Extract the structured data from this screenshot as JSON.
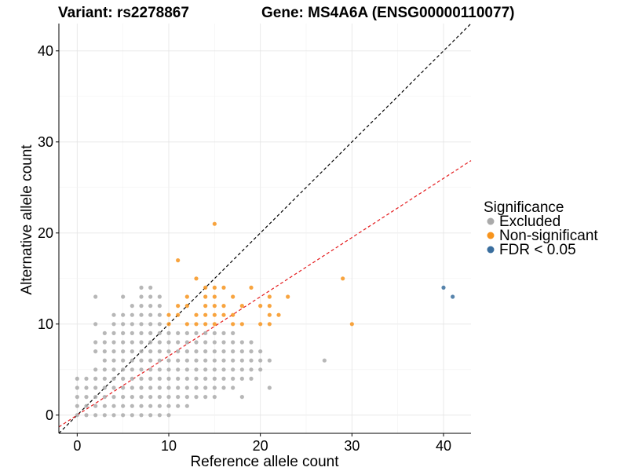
{
  "header": {
    "variant_title": "Variant: rs2278867",
    "gene_title": "Gene: MS4A6A (ENSG00000110077)"
  },
  "chart_data": {
    "type": "scatter",
    "title": "",
    "xlabel": "Reference allele count",
    "ylabel": "Alternative allele count",
    "xlim": [
      -2,
      43
    ],
    "ylim": [
      -2,
      43
    ],
    "x_ticks": [
      0,
      10,
      20,
      30,
      40
    ],
    "y_ticks": [
      0,
      10,
      20,
      30,
      40
    ],
    "x_tick_labels": [
      "0",
      "10",
      "20",
      "30",
      "40"
    ],
    "y_tick_labels": [
      "0",
      "10",
      "20",
      "30",
      "40"
    ],
    "grid": true,
    "legend": {
      "title": "Significance",
      "position": "right",
      "entries": [
        {
          "label": "Excluded",
          "color": "#AAAAAA"
        },
        {
          "label": "Non-significant",
          "color": "#F7941D"
        },
        {
          "label": "FDR < 0.05",
          "color": "#3A6E9E"
        }
      ]
    },
    "reference_lines": [
      {
        "slope": 1,
        "intercept": 0,
        "color": "#000000",
        "style": "dashed"
      },
      {
        "slope": 0.65,
        "intercept": 0,
        "color": "#E41A1C",
        "style": "dashed"
      }
    ],
    "series": [
      {
        "name": "Excluded",
        "color": "#AAAAAA",
        "points": [
          [
            0,
            0
          ],
          [
            0,
            1
          ],
          [
            0,
            2
          ],
          [
            0,
            3
          ],
          [
            0,
            4
          ],
          [
            1,
            0
          ],
          [
            1,
            1
          ],
          [
            1,
            2
          ],
          [
            1,
            3
          ],
          [
            1,
            4
          ],
          [
            2,
            0
          ],
          [
            2,
            1
          ],
          [
            2,
            2
          ],
          [
            2,
            3
          ],
          [
            2,
            4
          ],
          [
            2,
            5
          ],
          [
            2,
            7
          ],
          [
            2,
            8
          ],
          [
            2,
            10
          ],
          [
            2,
            13
          ],
          [
            3,
            0
          ],
          [
            3,
            1
          ],
          [
            3,
            2
          ],
          [
            3,
            3
          ],
          [
            3,
            4
          ],
          [
            3,
            5
          ],
          [
            3,
            6
          ],
          [
            3,
            7
          ],
          [
            3,
            8
          ],
          [
            3,
            9
          ],
          [
            4,
            0
          ],
          [
            4,
            1
          ],
          [
            4,
            2
          ],
          [
            4,
            3
          ],
          [
            4,
            4
          ],
          [
            4,
            5
          ],
          [
            4,
            6
          ],
          [
            4,
            7
          ],
          [
            4,
            8
          ],
          [
            4,
            9
          ],
          [
            4,
            10
          ],
          [
            4,
            11
          ],
          [
            5,
            0
          ],
          [
            5,
            1
          ],
          [
            5,
            2
          ],
          [
            5,
            3
          ],
          [
            5,
            4
          ],
          [
            5,
            5
          ],
          [
            5,
            6
          ],
          [
            5,
            7
          ],
          [
            5,
            8
          ],
          [
            5,
            9
          ],
          [
            5,
            10
          ],
          [
            5,
            11
          ],
          [
            5,
            13
          ],
          [
            6,
            0
          ],
          [
            6,
            1
          ],
          [
            6,
            2
          ],
          [
            6,
            3
          ],
          [
            6,
            4
          ],
          [
            6,
            5
          ],
          [
            6,
            6
          ],
          [
            6,
            7
          ],
          [
            6,
            8
          ],
          [
            6,
            9
          ],
          [
            6,
            10
          ],
          [
            6,
            11
          ],
          [
            6,
            12
          ],
          [
            7,
            0
          ],
          [
            7,
            1
          ],
          [
            7,
            2
          ],
          [
            7,
            3
          ],
          [
            7,
            4
          ],
          [
            7,
            5
          ],
          [
            7,
            6
          ],
          [
            7,
            7
          ],
          [
            7,
            8
          ],
          [
            7,
            9
          ],
          [
            7,
            10
          ],
          [
            7,
            11
          ],
          [
            7,
            12
          ],
          [
            7,
            13
          ],
          [
            7,
            14
          ],
          [
            8,
            0
          ],
          [
            8,
            1
          ],
          [
            8,
            2
          ],
          [
            8,
            3
          ],
          [
            8,
            4
          ],
          [
            8,
            5
          ],
          [
            8,
            6
          ],
          [
            8,
            7
          ],
          [
            8,
            8
          ],
          [
            8,
            9
          ],
          [
            8,
            10
          ],
          [
            8,
            11
          ],
          [
            8,
            12
          ],
          [
            8,
            13
          ],
          [
            8,
            14
          ],
          [
            9,
            0
          ],
          [
            9,
            1
          ],
          [
            9,
            2
          ],
          [
            9,
            3
          ],
          [
            9,
            4
          ],
          [
            9,
            5
          ],
          [
            9,
            6
          ],
          [
            9,
            7
          ],
          [
            9,
            8
          ],
          [
            9,
            9
          ],
          [
            9,
            10
          ],
          [
            9,
            11
          ],
          [
            9,
            12
          ],
          [
            9,
            13
          ],
          [
            10,
            0
          ],
          [
            10,
            1
          ],
          [
            10,
            2
          ],
          [
            10,
            3
          ],
          [
            10,
            4
          ],
          [
            10,
            5
          ],
          [
            10,
            6
          ],
          [
            10,
            7
          ],
          [
            10,
            8
          ],
          [
            10,
            9
          ],
          [
            11,
            1
          ],
          [
            11,
            2
          ],
          [
            11,
            3
          ],
          [
            11,
            4
          ],
          [
            11,
            5
          ],
          [
            11,
            6
          ],
          [
            11,
            7
          ],
          [
            11,
            8
          ],
          [
            11,
            9
          ],
          [
            12,
            1
          ],
          [
            12,
            2
          ],
          [
            12,
            3
          ],
          [
            12,
            4
          ],
          [
            12,
            5
          ],
          [
            12,
            6
          ],
          [
            12,
            7
          ],
          [
            12,
            8
          ],
          [
            12,
            9
          ],
          [
            13,
            2
          ],
          [
            13,
            3
          ],
          [
            13,
            4
          ],
          [
            13,
            5
          ],
          [
            13,
            6
          ],
          [
            13,
            7
          ],
          [
            13,
            8
          ],
          [
            13,
            9
          ],
          [
            14,
            2
          ],
          [
            14,
            3
          ],
          [
            14,
            4
          ],
          [
            14,
            5
          ],
          [
            14,
            6
          ],
          [
            14,
            7
          ],
          [
            14,
            8
          ],
          [
            14,
            9
          ],
          [
            15,
            2
          ],
          [
            15,
            3
          ],
          [
            15,
            4
          ],
          [
            15,
            5
          ],
          [
            15,
            6
          ],
          [
            15,
            7
          ],
          [
            15,
            8
          ],
          [
            15,
            9
          ],
          [
            16,
            3
          ],
          [
            16,
            4
          ],
          [
            16,
            5
          ],
          [
            16,
            6
          ],
          [
            16,
            7
          ],
          [
            16,
            8
          ],
          [
            16,
            9
          ],
          [
            17,
            3
          ],
          [
            17,
            4
          ],
          [
            17,
            5
          ],
          [
            17,
            6
          ],
          [
            17,
            7
          ],
          [
            17,
            8
          ],
          [
            17,
            9
          ],
          [
            18,
            2
          ],
          [
            18,
            4
          ],
          [
            18,
            5
          ],
          [
            18,
            6
          ],
          [
            18,
            7
          ],
          [
            18,
            8
          ],
          [
            19,
            4
          ],
          [
            19,
            5
          ],
          [
            19,
            6
          ],
          [
            19,
            7
          ],
          [
            19,
            8
          ],
          [
            20,
            5
          ],
          [
            20,
            6
          ],
          [
            20,
            7
          ],
          [
            21,
            3
          ],
          [
            21,
            6
          ],
          [
            27,
            6
          ]
        ]
      },
      {
        "name": "Non-significant",
        "color": "#F7941D",
        "points": [
          [
            10,
            10
          ],
          [
            10,
            11
          ],
          [
            11,
            11
          ],
          [
            11,
            12
          ],
          [
            11,
            17
          ],
          [
            12,
            10
          ],
          [
            12,
            12
          ],
          [
            12,
            13
          ],
          [
            13,
            10
          ],
          [
            13,
            11
          ],
          [
            13,
            15
          ],
          [
            14,
            10
          ],
          [
            14,
            11
          ],
          [
            14,
            12
          ],
          [
            14,
            13
          ],
          [
            14,
            14
          ],
          [
            15,
            10
          ],
          [
            15,
            11
          ],
          [
            15,
            12
          ],
          [
            15,
            13
          ],
          [
            15,
            14
          ],
          [
            15,
            21
          ],
          [
            16,
            11
          ],
          [
            16,
            12
          ],
          [
            16,
            14
          ],
          [
            17,
            10
          ],
          [
            17,
            11
          ],
          [
            17,
            13
          ],
          [
            18,
            10
          ],
          [
            18,
            12
          ],
          [
            19,
            14
          ],
          [
            20,
            10
          ],
          [
            20,
            12
          ],
          [
            21,
            10
          ],
          [
            21,
            11
          ],
          [
            21,
            12
          ],
          [
            21,
            13
          ],
          [
            22,
            11
          ],
          [
            23,
            13
          ],
          [
            29,
            15
          ],
          [
            30,
            10
          ]
        ]
      },
      {
        "name": "FDR < 0.05",
        "color": "#3A6E9E",
        "points": [
          [
            40,
            14
          ],
          [
            41,
            13
          ]
        ]
      }
    ]
  }
}
